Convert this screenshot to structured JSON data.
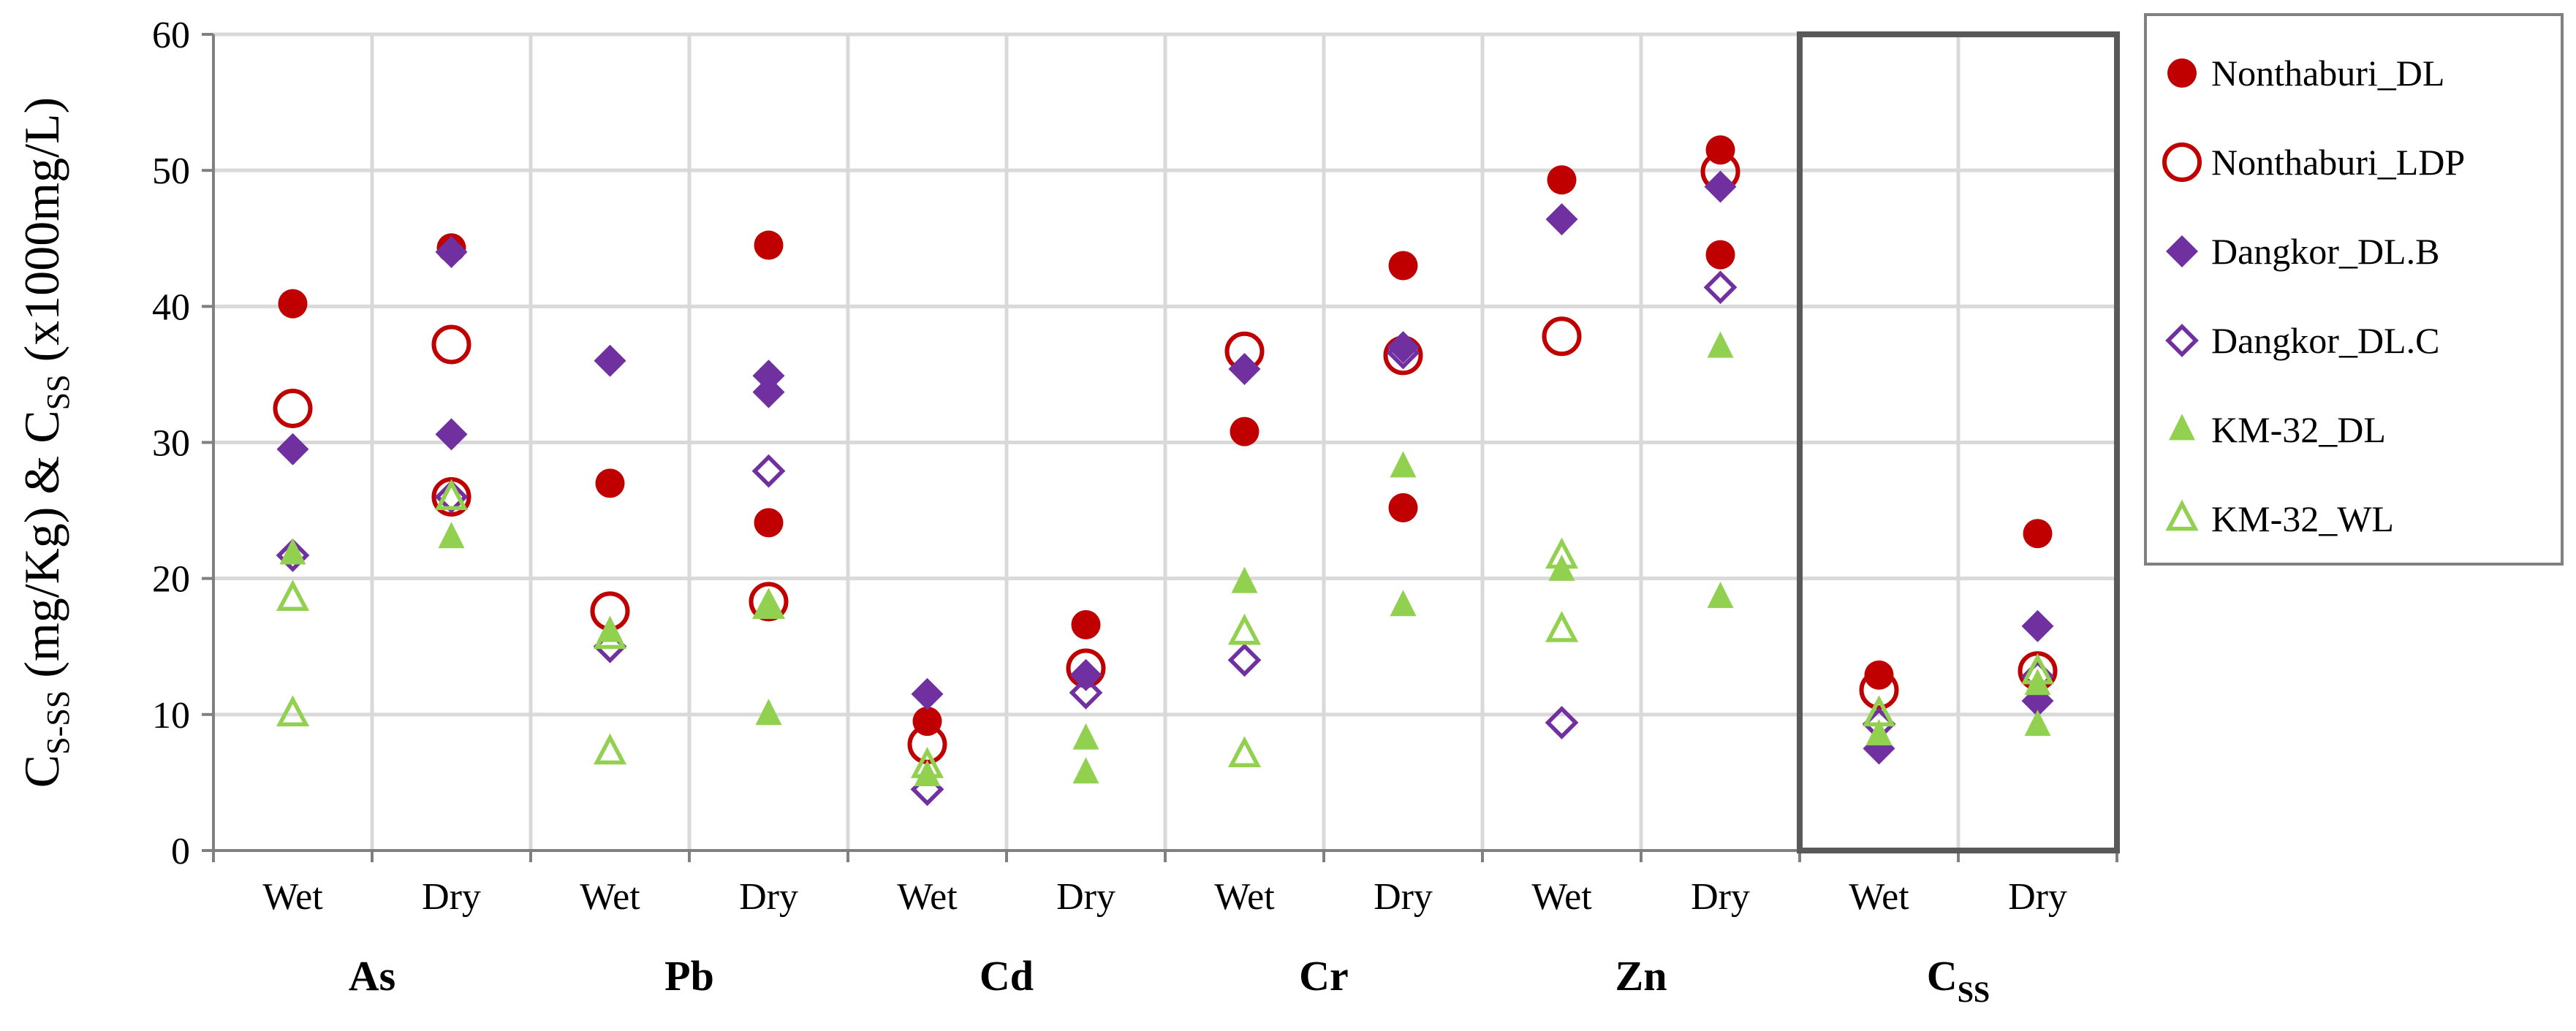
{
  "chart_data": {
    "type": "scatter",
    "ylabel": {
      "parts": [
        {
          "text": "C",
          "sub": false
        },
        {
          "text": "S-SS",
          "sub": true
        },
        {
          "text": " (mg/Kg) & C",
          "sub": false
        },
        {
          "text": "SS",
          "sub": true
        },
        {
          "text": " (x1000mg/L)",
          "sub": false
        }
      ]
    },
    "ylim": [
      0,
      60
    ],
    "yticks": [
      0,
      10,
      20,
      30,
      40,
      50,
      60
    ],
    "grid": true,
    "legend_position": "right",
    "groups": [
      {
        "name": "As",
        "label": "As",
        "sub": ""
      },
      {
        "name": "Pb",
        "label": "Pb",
        "sub": ""
      },
      {
        "name": "Cd",
        "label": "Cd",
        "sub": ""
      },
      {
        "name": "Cr",
        "label": "Cr",
        "sub": ""
      },
      {
        "name": "Zn",
        "label": "Zn",
        "sub": ""
      },
      {
        "name": "Css",
        "label": "C",
        "sub": "SS"
      }
    ],
    "seasons": [
      "Wet",
      "Dry"
    ],
    "highlight_group": "Css",
    "series": [
      {
        "name": "Nonthaburi_DL",
        "marker": "circle",
        "filled": true,
        "color": "#c00000",
        "values": [
          [
            40.2
          ],
          [
            44.3
          ],
          [
            27.0
          ],
          [
            24.1,
            44.5
          ],
          [
            9.5
          ],
          [
            16.6
          ],
          [
            30.8
          ],
          [
            25.2,
            43.0
          ],
          [
            49.3
          ],
          [
            43.8,
            51.5
          ],
          [
            12.9
          ],
          [
            23.3
          ]
        ]
      },
      {
        "name": "Nonthaburi_LDP",
        "marker": "circle",
        "filled": false,
        "color": "#c00000",
        "values": [
          [
            32.5
          ],
          [
            26.0,
            37.2
          ],
          [
            17.6
          ],
          [
            18.3
          ],
          [
            7.8
          ],
          [
            13.4
          ],
          [
            36.7
          ],
          [
            36.4
          ],
          [
            37.8
          ],
          [
            49.9
          ],
          [
            11.8
          ],
          [
            13.2
          ]
        ]
      },
      {
        "name": "Dangkor_DL.B",
        "marker": "diamond",
        "filled": true,
        "color": "#7030a0",
        "values": [
          [
            29.5
          ],
          [
            30.6,
            44.0
          ],
          [
            36.0
          ],
          [
            33.7,
            34.9
          ],
          [
            11.5
          ],
          [
            12.9
          ],
          [
            35.4
          ],
          [
            37.0
          ],
          [
            46.4
          ],
          [
            48.8
          ],
          [
            7.5
          ],
          [
            11.0,
            16.5
          ]
        ]
      },
      {
        "name": "Dangkor_DL.C",
        "marker": "diamond",
        "filled": false,
        "color": "#7030a0",
        "values": [
          [
            21.7
          ],
          [
            26.0
          ],
          [
            15.0
          ],
          [
            27.9
          ],
          [
            4.5
          ],
          [
            11.6
          ],
          [
            14.0
          ],
          [
            36.6
          ],
          [
            9.4
          ],
          [
            41.4
          ],
          [
            9.3
          ],
          [
            12.8
          ]
        ]
      },
      {
        "name": "KM-32_DL",
        "marker": "triangle",
        "filled": true,
        "color": "#92d050",
        "values": [
          [
            21.8
          ],
          [
            23.0
          ],
          [
            16.1
          ],
          [
            10.0,
            17.8
          ],
          [
            5.5
          ],
          [
            5.7,
            8.2
          ],
          [
            19.7
          ],
          [
            18.0,
            28.2
          ],
          [
            20.6
          ],
          [
            18.6,
            37.0
          ],
          [
            8.5
          ],
          [
            9.2,
            12.2
          ]
        ]
      },
      {
        "name": "KM-32_WL",
        "marker": "triangle",
        "filled": false,
        "color": "#92d050",
        "values": [
          [
            10.0,
            18.5
          ],
          [
            25.9
          ],
          [
            7.2,
            15.7
          ],
          [
            17.9
          ],
          [
            6.2
          ],
          [],
          [
            7.0,
            16.0
          ],
          [],
          [
            16.2,
            21.6
          ],
          [],
          [
            10.0
          ],
          [
            13.1
          ]
        ]
      }
    ]
  }
}
